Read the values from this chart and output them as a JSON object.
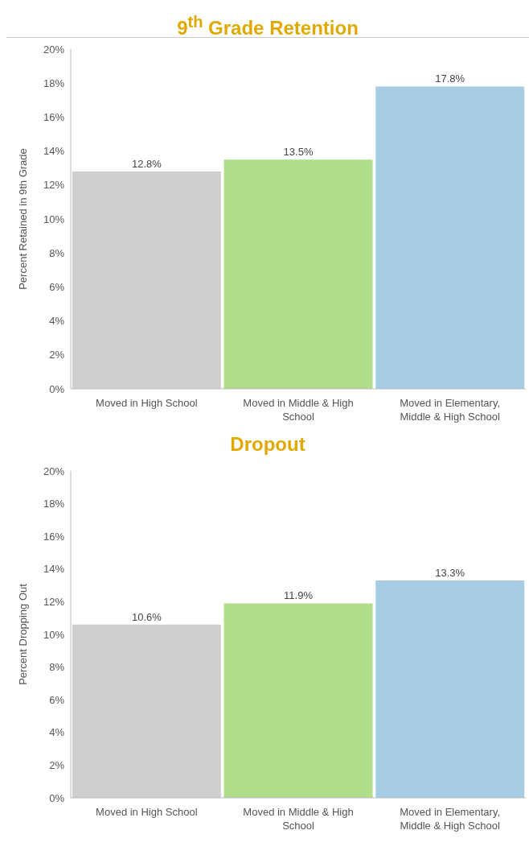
{
  "chart_data": [
    {
      "type": "bar",
      "title": "9$^{th}$ Grade Retention",
      "ylabel": "Percent Retained in 9th Grade",
      "categories": [
        "Moved in High School",
        "Moved in Middle & High School",
        "Moved in Elementary, Middle & High School"
      ],
      "values": [
        12.8,
        13.5,
        17.8
      ],
      "value_labels": [
        "12.8%",
        "13.5%",
        "17.8%"
      ],
      "colors": [
        "#d0cece",
        "#b0de8a",
        "#a6cde3"
      ],
      "ylim": [
        0,
        20
      ],
      "yticks": [
        {
          "value": 0,
          "label": "0%"
        },
        {
          "value": 2,
          "label": "2%"
        },
        {
          "value": 4,
          "label": "4%"
        },
        {
          "value": 6,
          "label": "6%"
        },
        {
          "value": 8,
          "label": "8%"
        },
        {
          "value": 10,
          "label": "10%"
        },
        {
          "value": 12,
          "label": "12%"
        },
        {
          "value": 14,
          "label": "14%"
        },
        {
          "value": 16,
          "label": "16%"
        },
        {
          "value": 18,
          "label": "18%"
        },
        {
          "value": 20,
          "label": "20%"
        }
      ],
      "grid": false,
      "legend": false
    },
    {
      "type": "bar",
      "title": "Dropout",
      "ylabel": "Percent Dropping Out",
      "categories": [
        "Moved in High School",
        "Moved in Middle & High School",
        "Moved in Elementary, Middle & High School"
      ],
      "values": [
        10.6,
        11.9,
        13.3
      ],
      "value_labels": [
        "10.6%",
        "11.9%",
        "13.3%"
      ],
      "colors": [
        "#d0cece",
        "#b0de8a",
        "#a6cde3"
      ],
      "ylim": [
        0,
        20
      ],
      "yticks": [
        {
          "value": 0,
          "label": "0%"
        },
        {
          "value": 2,
          "label": "2%"
        },
        {
          "value": 4,
          "label": "4%"
        },
        {
          "value": 6,
          "label": "6%"
        },
        {
          "value": 8,
          "label": "8%"
        },
        {
          "value": 10,
          "label": "10%"
        },
        {
          "value": 12,
          "label": "12%"
        },
        {
          "value": 14,
          "label": "14%"
        },
        {
          "value": 16,
          "label": "16%"
        },
        {
          "value": 18,
          "label": "18%"
        },
        {
          "value": 20,
          "label": "20%"
        }
      ],
      "grid": false,
      "legend": false
    }
  ]
}
